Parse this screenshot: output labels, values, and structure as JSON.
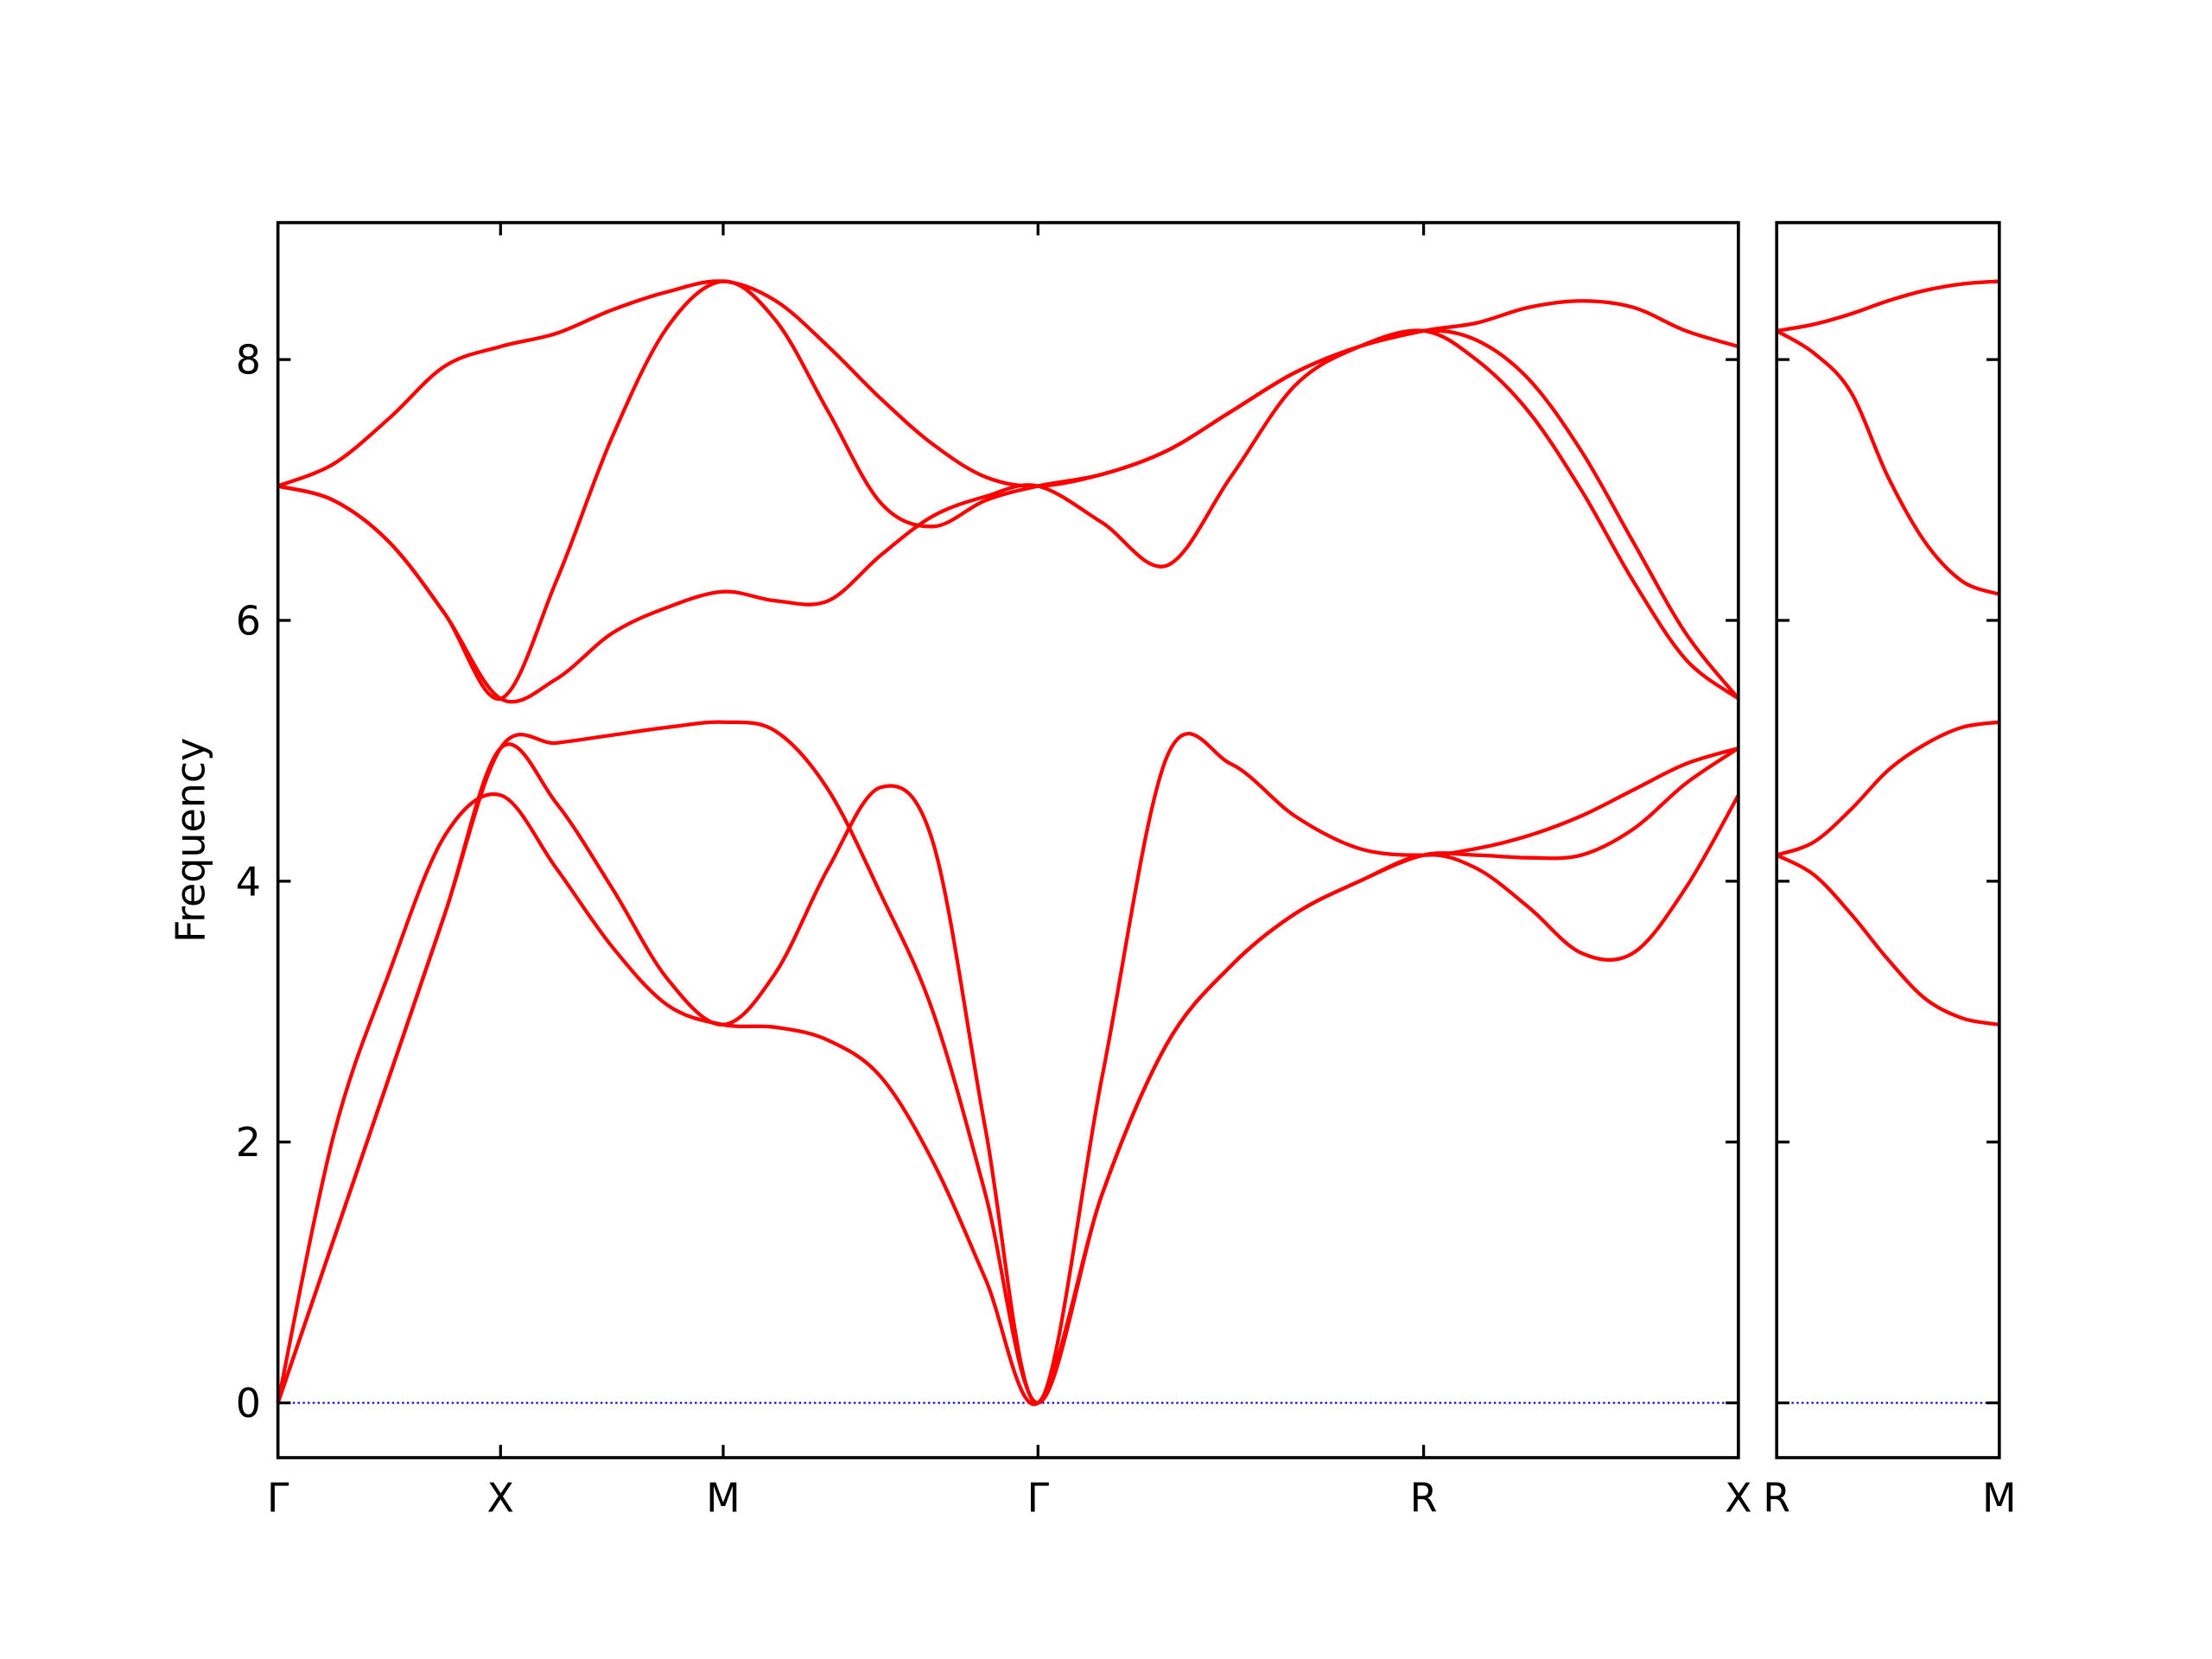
{
  "chart_data": [
    {
      "type": "line",
      "ylabel": "Frequency",
      "x": [
        0,
        0.125,
        0.25,
        0.375,
        0.5,
        0.625,
        0.75,
        0.875,
        1,
        1.118,
        1.236,
        1.354,
        1.471,
        1.589,
        1.707,
        1.851,
        1.996,
        2.14,
        2.284,
        2.429,
        2.573,
        2.691,
        2.809,
        2.927,
        3.044,
        3.162,
        3.28
      ],
      "series": [
        {
          "color": "#ff0000",
          "values": [
            0,
            2.05,
            3.3,
            4.35,
            4.66,
            4.1,
            3.5,
            3.05,
            2.9,
            2.88,
            2.78,
            2.5,
            1.85,
            0.95,
            0,
            1.6,
            2.75,
            3.35,
            3.75,
            4.0,
            4.2,
            4.1,
            3.8,
            3.45,
            3.45,
            3.95,
            4.66
          ]
        },
        {
          "color": "#ff0000",
          "values": [
            0,
            1.25,
            2.5,
            3.75,
            5.02,
            4.6,
            3.95,
            3.25,
            2.9,
            3.3,
            4.1,
            4.72,
            4.3,
            2.1,
            0,
            2.5,
            4.95,
            4.9,
            4.5,
            4.25,
            4.2,
            4.25,
            4.35,
            4.5,
            4.7,
            4.9,
            5.02
          ]
        },
        {
          "color": "#ff0000",
          "values": [
            0,
            1.25,
            2.5,
            3.75,
            5.02,
            5.06,
            5.12,
            5.18,
            5.22,
            5.15,
            4.7,
            3.9,
            3.0,
            1.6,
            0,
            1.6,
            2.75,
            3.35,
            3.75,
            4.0,
            4.2,
            4.2,
            4.18,
            4.2,
            4.4,
            4.75,
            5.02
          ]
        },
        {
          "color": "#ff0000",
          "values": [
            7.03,
            6.92,
            6.6,
            6.05,
            5.4,
            5.55,
            5.9,
            6.1,
            6.22,
            6.15,
            6.15,
            6.5,
            6.8,
            6.95,
            7.03,
            6.75,
            6.42,
            7.1,
            7.8,
            8.1,
            8.22,
            8.0,
            7.6,
            7.0,
            6.3,
            5.7,
            5.4
          ]
        },
        {
          "color": "#ff0000",
          "values": [
            7.03,
            6.92,
            6.6,
            6.05,
            5.4,
            6.3,
            7.4,
            8.25,
            8.6,
            8.3,
            7.6,
            6.9,
            6.72,
            6.92,
            7.03,
            7.12,
            7.3,
            7.6,
            7.9,
            8.1,
            8.22,
            8.15,
            7.85,
            7.3,
            6.6,
            5.9,
            5.4
          ]
        },
        {
          "color": "#ff0000",
          "values": [
            7.03,
            7.2,
            7.55,
            7.95,
            8.1,
            8.2,
            8.38,
            8.52,
            8.6,
            8.45,
            8.1,
            7.7,
            7.35,
            7.1,
            7.03,
            7.12,
            7.3,
            7.6,
            7.9,
            8.1,
            8.22,
            8.28,
            8.4,
            8.45,
            8.4,
            8.22,
            8.1
          ]
        }
      ],
      "xlim": [
        0,
        3.28
      ],
      "ylim": [
        -0.42,
        9.05
      ],
      "xticks": [
        {
          "value": 0,
          "label": "Γ"
        },
        {
          "value": 0.5,
          "label": "X"
        },
        {
          "value": 1,
          "label": "M"
        },
        {
          "value": 1.707,
          "label": "Γ"
        },
        {
          "value": 2.573,
          "label": "R"
        },
        {
          "value": 3.28,
          "label": "X"
        }
      ],
      "yticks": [
        0,
        2,
        4,
        6,
        8
      ],
      "hline": 0,
      "hline_color": "#0000cd"
    },
    {
      "type": "line",
      "x": [
        0,
        0.0833,
        0.1667,
        0.25,
        0.3333,
        0.4167,
        0.5
      ],
      "series": [
        {
          "color": "#ff0000",
          "values": [
            8.22,
            8.27,
            8.35,
            8.45,
            8.53,
            8.58,
            8.6
          ]
        },
        {
          "color": "#ff0000",
          "values": [
            8.22,
            8.05,
            7.75,
            7.1,
            6.6,
            6.3,
            6.2
          ]
        },
        {
          "color": "#ff0000",
          "values": [
            4.2,
            4.3,
            4.55,
            4.85,
            5.05,
            5.18,
            5.22
          ]
        },
        {
          "color": "#ff0000",
          "values": [
            4.2,
            4.05,
            3.75,
            3.4,
            3.1,
            2.95,
            2.9
          ]
        }
      ],
      "xlim": [
        0,
        0.5
      ],
      "ylim": [
        -0.42,
        9.05
      ],
      "xticks": [
        {
          "value": 0,
          "label": "R"
        },
        {
          "value": 0.5,
          "label": "M"
        }
      ],
      "yticks": [
        0,
        2,
        4,
        6,
        8
      ],
      "show_yticklabels": false,
      "hline": 0,
      "hline_color": "#0000cd"
    }
  ]
}
